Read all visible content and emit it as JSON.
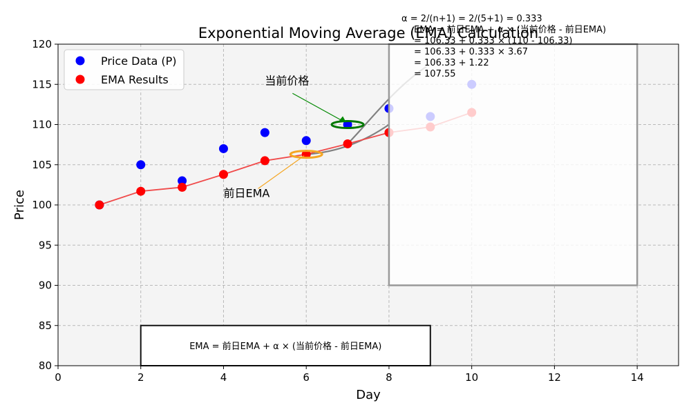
{
  "chart_data": {
    "type": "scatter",
    "title": "Exponential Moving Average (EMA) Calculation",
    "xlabel": "Day",
    "ylabel": "Price",
    "xlim": [
      0,
      15
    ],
    "ylim": [
      80,
      120
    ],
    "xticks": [
      0,
      2,
      4,
      6,
      8,
      10,
      12,
      14
    ],
    "yticks": [
      80,
      85,
      90,
      95,
      100,
      105,
      110,
      115,
      120
    ],
    "grid": true,
    "legend_position": "top-left",
    "series": [
      {
        "name": "Price Data (P)",
        "color": "#0000ff",
        "x": [
          1,
          2,
          3,
          4,
          5,
          6,
          7,
          8,
          9,
          10
        ],
        "y": [
          100,
          105,
          103,
          107,
          109,
          108,
          110,
          112,
          111,
          115
        ]
      },
      {
        "name": "EMA Results",
        "color": "#ff0000",
        "line_color": "#f04a4a",
        "x": [
          1,
          2,
          3,
          4,
          5,
          6,
          7,
          8,
          9,
          10
        ],
        "y": [
          100,
          101.7,
          102.2,
          103.8,
          105.5,
          106.3,
          107.6,
          109.0,
          109.7,
          111.5
        ]
      }
    ],
    "annotations": {
      "current_price_label": "当前价格",
      "previous_ema_label": "前日EMA",
      "current_price_point": [
        7,
        110
      ],
      "current_price_text_at": [
        5,
        115
      ],
      "previous_ema_point": [
        6,
        106.3
      ],
      "previous_ema_text_at": [
        4,
        101
      ],
      "green_ellipse_color": "#007700",
      "orange_ellipse_color": "#f5a623",
      "formula_box_text": "EMA = 前日EMA + α × (当前价格 - 前日EMA)",
      "formula_box_range": {
        "x": [
          2,
          9
        ],
        "y": [
          80,
          85
        ]
      },
      "calc_box_range": {
        "x": [
          8,
          14
        ],
        "y": [
          90,
          120
        ]
      },
      "calc_lines": [
        "α = 2/(n+1) = 2/(5+1) = 0.333",
        "EMA = 前日EMA + α × (当前价格 - 前日EMA)",
        "= 106.33 + 0.333 × (110 - 106.33)",
        "= 106.33 + 0.333 × 3.67",
        "= 106.33 + 1.22",
        "= 107.55"
      ]
    }
  }
}
